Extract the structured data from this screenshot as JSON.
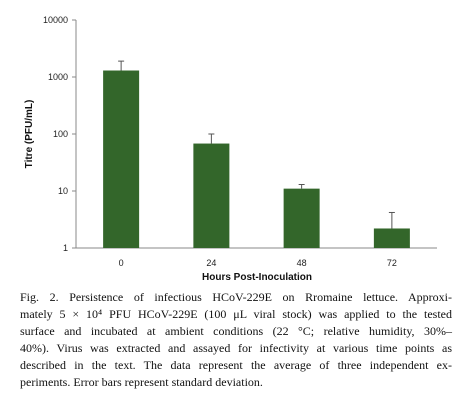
{
  "chart_data": {
    "type": "bar",
    "xlabel": "Hours Post-Inoculation",
    "ylabel": "Titre (PFU/mL)",
    "yscale": "log",
    "ylim": [
      1,
      10000
    ],
    "yticks": [
      "1",
      "10",
      "100",
      "1000",
      "10000"
    ],
    "categories": [
      "0",
      "24",
      "48",
      "72"
    ],
    "values": [
      1300,
      68,
      11,
      2.2
    ],
    "error_upper": [
      1900,
      100,
      13,
      4.2
    ],
    "bar_color": "#33662a",
    "grid": false,
    "legend": "none"
  },
  "caption": {
    "lines": [
      "Fig. 2. Persistence of infectious HCoV-229E on Rromaine lettuce. Approxi-",
      "mately 5 × 10⁴ PFU HCoV-229E (100 μL viral stock) was applied to the tested",
      "surface and incubated at ambient conditions (22 °C; relative humidity, 30%–",
      "40%). Virus was extracted and assayed for infectivity at various time points as",
      "described in the text. The data represent the average of three independent ex-",
      "periments. Error bars represent standard deviation."
    ]
  }
}
